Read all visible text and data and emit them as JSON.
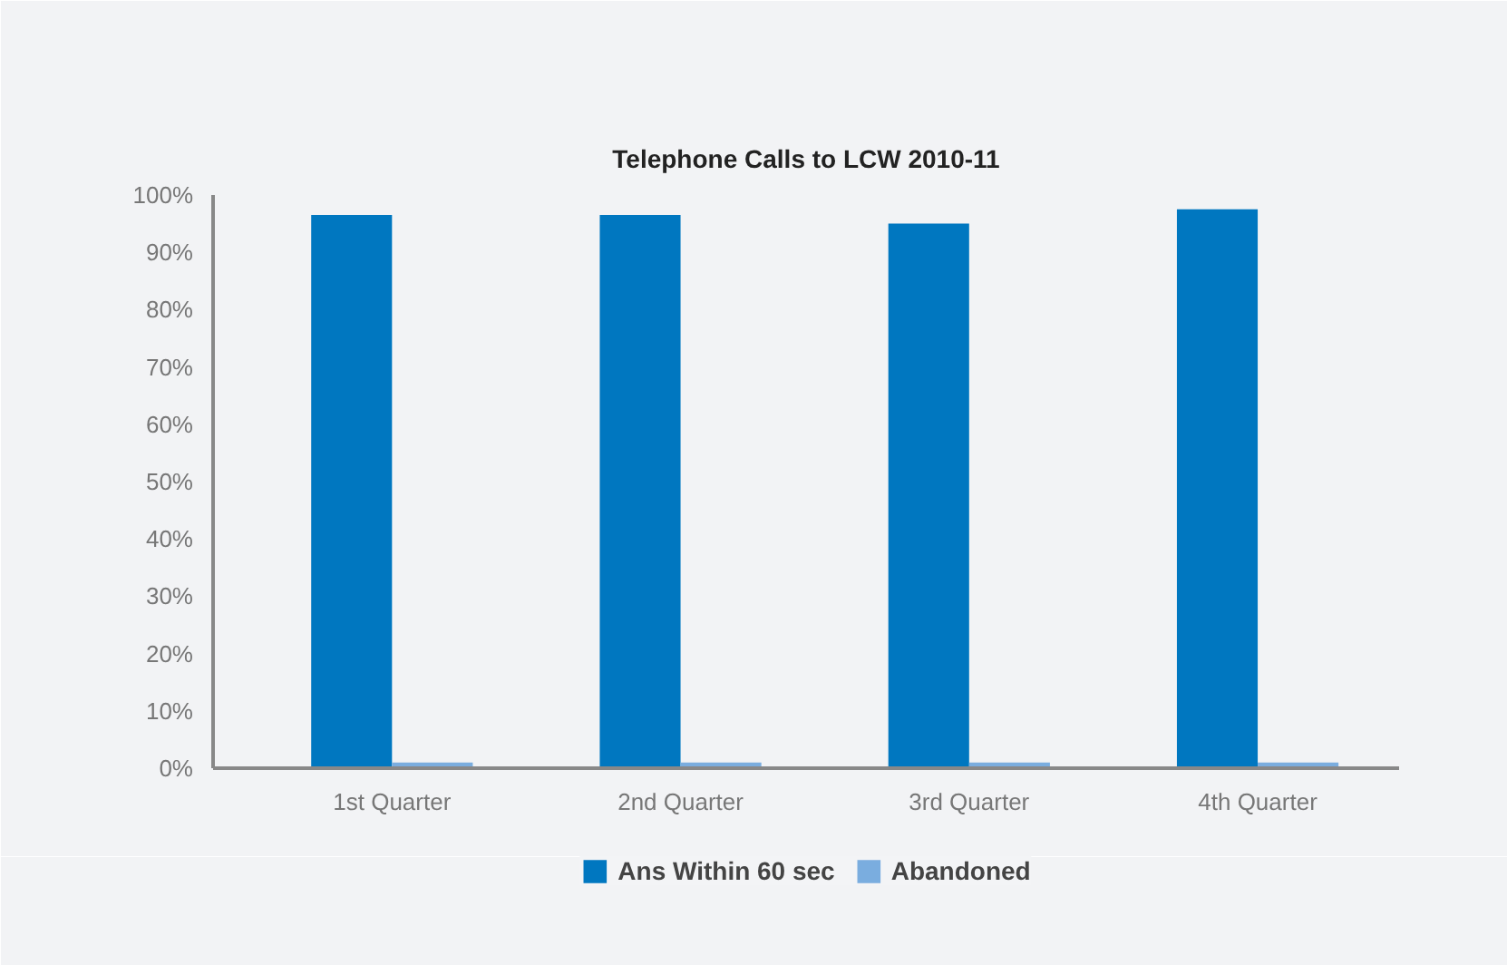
{
  "chart_data": {
    "type": "bar",
    "title": "Telephone Calls to LCW 2010-11",
    "categories": [
      "1st Quarter",
      "2nd Quarter",
      "3rd Quarter",
      "4th Quarter"
    ],
    "series": [
      {
        "name": "Ans Within 60 sec",
        "color": "#0077c0",
        "values": [
          96.5,
          96.5,
          95,
          97.5
        ]
      },
      {
        "name": "Abandoned",
        "color": "#7aaddf",
        "values": [
          1,
          1,
          1,
          1
        ]
      }
    ],
    "ylim": [
      0,
      100
    ],
    "yticks": [
      {
        "value": 0,
        "label": "0%"
      },
      {
        "value": 10,
        "label": "10%"
      },
      {
        "value": 20,
        "label": "20%"
      },
      {
        "value": 30,
        "label": "30%"
      },
      {
        "value": 40,
        "label": "40%"
      },
      {
        "value": 50,
        "label": "50%"
      },
      {
        "value": 60,
        "label": "60%"
      },
      {
        "value": 70,
        "label": "70%"
      },
      {
        "value": 80,
        "label": "80%"
      },
      {
        "value": 90,
        "label": "90%"
      },
      {
        "value": 100,
        "label": "100%"
      }
    ],
    "grid": false,
    "legend": "bottom"
  }
}
